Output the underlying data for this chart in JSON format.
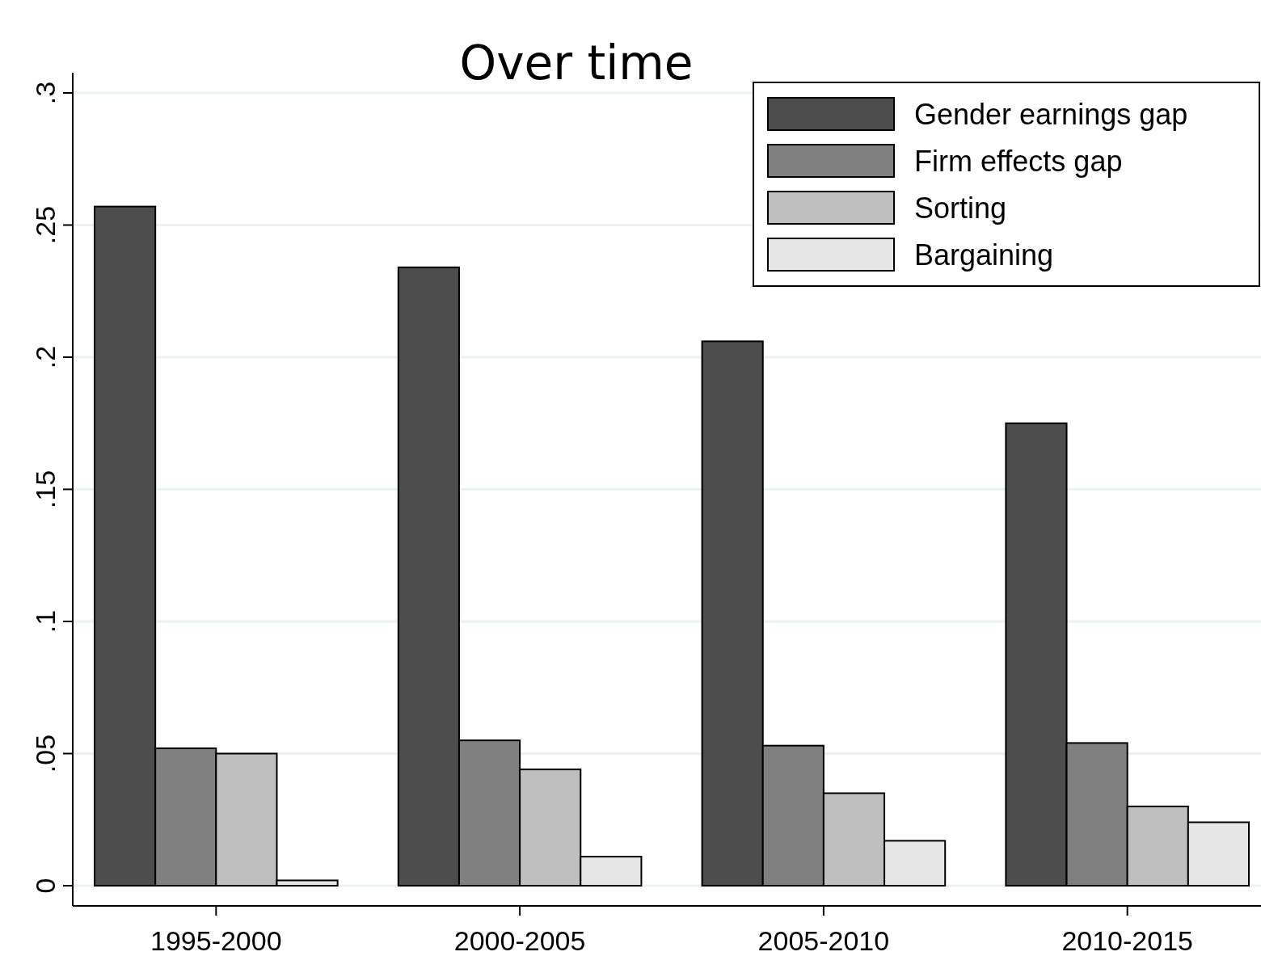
{
  "chart_data": {
    "type": "bar",
    "title": "Over time",
    "categories": [
      "1995-2000",
      "2000-2005",
      "2005-2010",
      "2010-2015"
    ],
    "series": [
      {
        "name": "Gender earnings gap",
        "color": "#4d4d4d",
        "values": [
          0.257,
          0.234,
          0.206,
          0.175
        ]
      },
      {
        "name": "Firm effects gap",
        "color": "#808080",
        "values": [
          0.052,
          0.055,
          0.053,
          0.054
        ]
      },
      {
        "name": "Sorting",
        "color": "#bfbfbf",
        "values": [
          0.05,
          0.044,
          0.035,
          0.03
        ]
      },
      {
        "name": "Bargaining",
        "color": "#e6e6e6",
        "values": [
          0.002,
          0.011,
          0.017,
          0.024
        ]
      }
    ],
    "ylim": [
      0,
      0.3
    ],
    "yticks": [
      {
        "value": 0,
        "label": "0"
      },
      {
        "value": 0.05,
        "label": ".05"
      },
      {
        "value": 0.1,
        "label": ".1"
      },
      {
        "value": 0.15,
        "label": ".15"
      },
      {
        "value": 0.2,
        "label": ".2"
      },
      {
        "value": 0.25,
        "label": ".25"
      },
      {
        "value": 0.3,
        "label": ".3"
      }
    ],
    "grid": "y",
    "legend": "top right"
  }
}
